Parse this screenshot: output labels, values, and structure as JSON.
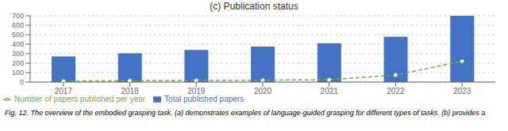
{
  "chart_data": {
    "type": "bar",
    "title": "(c) Publication status",
    "subtitle": "Fig. 12.  The overview of the embodied grasping task. (a) demonstrates examples of language-guided grasping for different types of tasks. (b) provides a",
    "categories": [
      2017,
      2018,
      2019,
      2020,
      2021,
      2022,
      2023
    ],
    "series": [
      {
        "name": "Total published papers",
        "type": "bar",
        "color": "#4472c4",
        "values": [
          270,
          305,
          340,
          375,
          410,
          480,
          700
        ]
      },
      {
        "name": "Number of papers published per year",
        "type": "line",
        "color": "#70ad47",
        "line_style": "dashed",
        "marker": "circle",
        "values": [
          10,
          15,
          18,
          20,
          25,
          75,
          220
        ]
      }
    ],
    "ylim": [
      0,
      700
    ],
    "yticks": [
      0,
      100,
      200,
      300,
      400,
      500,
      600,
      700
    ],
    "grid": true,
    "legend": "lower left"
  }
}
